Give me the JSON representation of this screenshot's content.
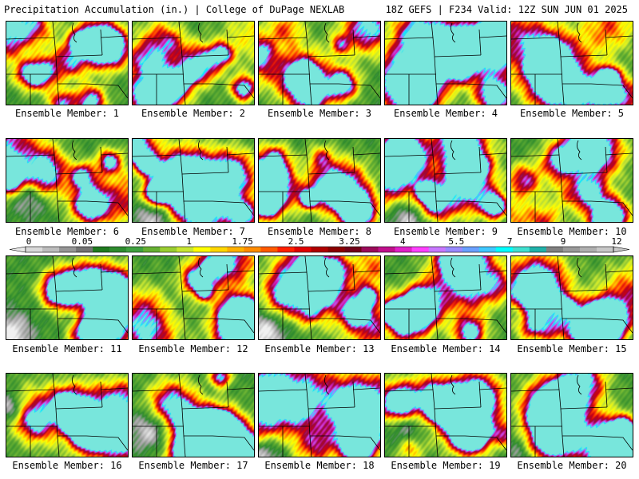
{
  "header": {
    "left": "Precipitation Accumulation (in.) | College of DuPage NEXLAB",
    "right": "18Z GEFS | F234 Valid: 12Z SUN JUN 01 2025"
  },
  "member_label_prefix": "Ensemble Member: ",
  "members": [
    {
      "number": "1",
      "label": "Ensemble Member: 1"
    },
    {
      "number": "2",
      "label": "Ensemble Member: 2"
    },
    {
      "number": "3",
      "label": "Ensemble Member: 3"
    },
    {
      "number": "4",
      "label": "Ensemble Member: 4"
    },
    {
      "number": "5",
      "label": "Ensemble Member: 5"
    },
    {
      "number": "6",
      "label": "Ensemble Member: 6"
    },
    {
      "number": "7",
      "label": "Ensemble Member: 7"
    },
    {
      "number": "8",
      "label": "Ensemble Member: 8"
    },
    {
      "number": "9",
      "label": "Ensemble Member: 9"
    },
    {
      "number": "10",
      "label": "Ensemble Member: 10"
    },
    {
      "number": "11",
      "label": "Ensemble Member: 11"
    },
    {
      "number": "12",
      "label": "Ensemble Member: 12"
    },
    {
      "number": "13",
      "label": "Ensemble Member: 13"
    },
    {
      "number": "14",
      "label": "Ensemble Member: 14"
    },
    {
      "number": "15",
      "label": "Ensemble Member: 15"
    },
    {
      "number": "16",
      "label": "Ensemble Member: 16"
    },
    {
      "number": "17",
      "label": "Ensemble Member: 17"
    },
    {
      "number": "18",
      "label": "Ensemble Member: 18"
    },
    {
      "number": "19",
      "label": "Ensemble Member: 19"
    },
    {
      "number": "20",
      "label": "Ensemble Member: 20"
    }
  ],
  "colorbar": {
    "tick_labels": [
      "0",
      "0.05",
      "0.25",
      "1",
      "1.75",
      "2.5",
      "3.25",
      "4",
      "5.5",
      "7",
      "9",
      "12"
    ],
    "colors": [
      "#d9d9d9",
      "#bdbdbd",
      "#969696",
      "#737373",
      "#1f7a1f",
      "#2e8b2e",
      "#3fa03f",
      "#66b032",
      "#9acd32",
      "#c8e632",
      "#ffff00",
      "#ffd700",
      "#ffb000",
      "#ff8c00",
      "#ff5a00",
      "#ff2000",
      "#e00000",
      "#b00000",
      "#8b0000",
      "#700018",
      "#9b0a5a",
      "#c0108c",
      "#e020c8",
      "#ff40ff",
      "#c878ff",
      "#9a8aff",
      "#6aa0ff",
      "#40c8ff",
      "#00ffff",
      "#40e0d0",
      "#20b2aa",
      "#808080",
      "#9a9a9a",
      "#b0b0b0",
      "#c8c8c8"
    ]
  }
}
